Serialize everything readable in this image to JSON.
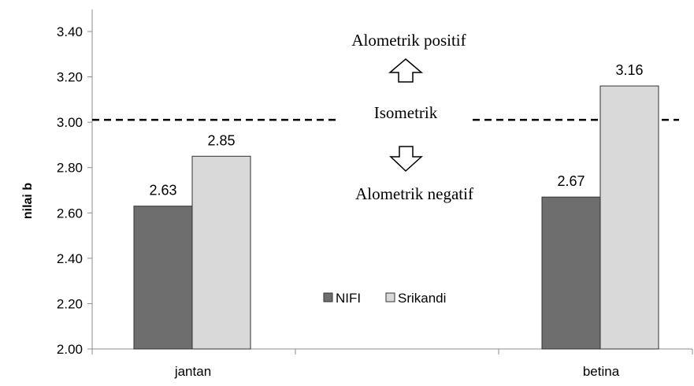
{
  "chart_data": {
    "type": "bar",
    "categories": [
      "jantan",
      "betina"
    ],
    "series": [
      {
        "name": "NIFI",
        "values": [
          2.63,
          2.67
        ],
        "color": "#6e6e6e"
      },
      {
        "name": "Srikandi",
        "values": [
          2.85,
          3.16
        ],
        "color": "#d9d9d9"
      }
    ],
    "data_labels": [
      [
        "2.63",
        "2.67"
      ],
      [
        "2.85",
        "3.16"
      ]
    ],
    "ylabel": "nilai b",
    "ylim": [
      2.0,
      3.4
    ],
    "yticks": [
      "2.00",
      "2.20",
      "2.40",
      "2.60",
      "2.80",
      "3.00",
      "3.20",
      "3.40"
    ],
    "grid": false,
    "legend": {
      "placement": "center-bottom",
      "entries": [
        "NIFI",
        "Srikandi"
      ]
    },
    "reference_line": {
      "value": 3.0,
      "style": "dashed",
      "label": "Isometrik"
    },
    "annotations": {
      "above": "Alometrik positif",
      "below": "Alometrik negatif",
      "arrow_up_icon": "hollow-up-arrow-icon",
      "arrow_down_icon": "hollow-down-arrow-icon"
    }
  }
}
